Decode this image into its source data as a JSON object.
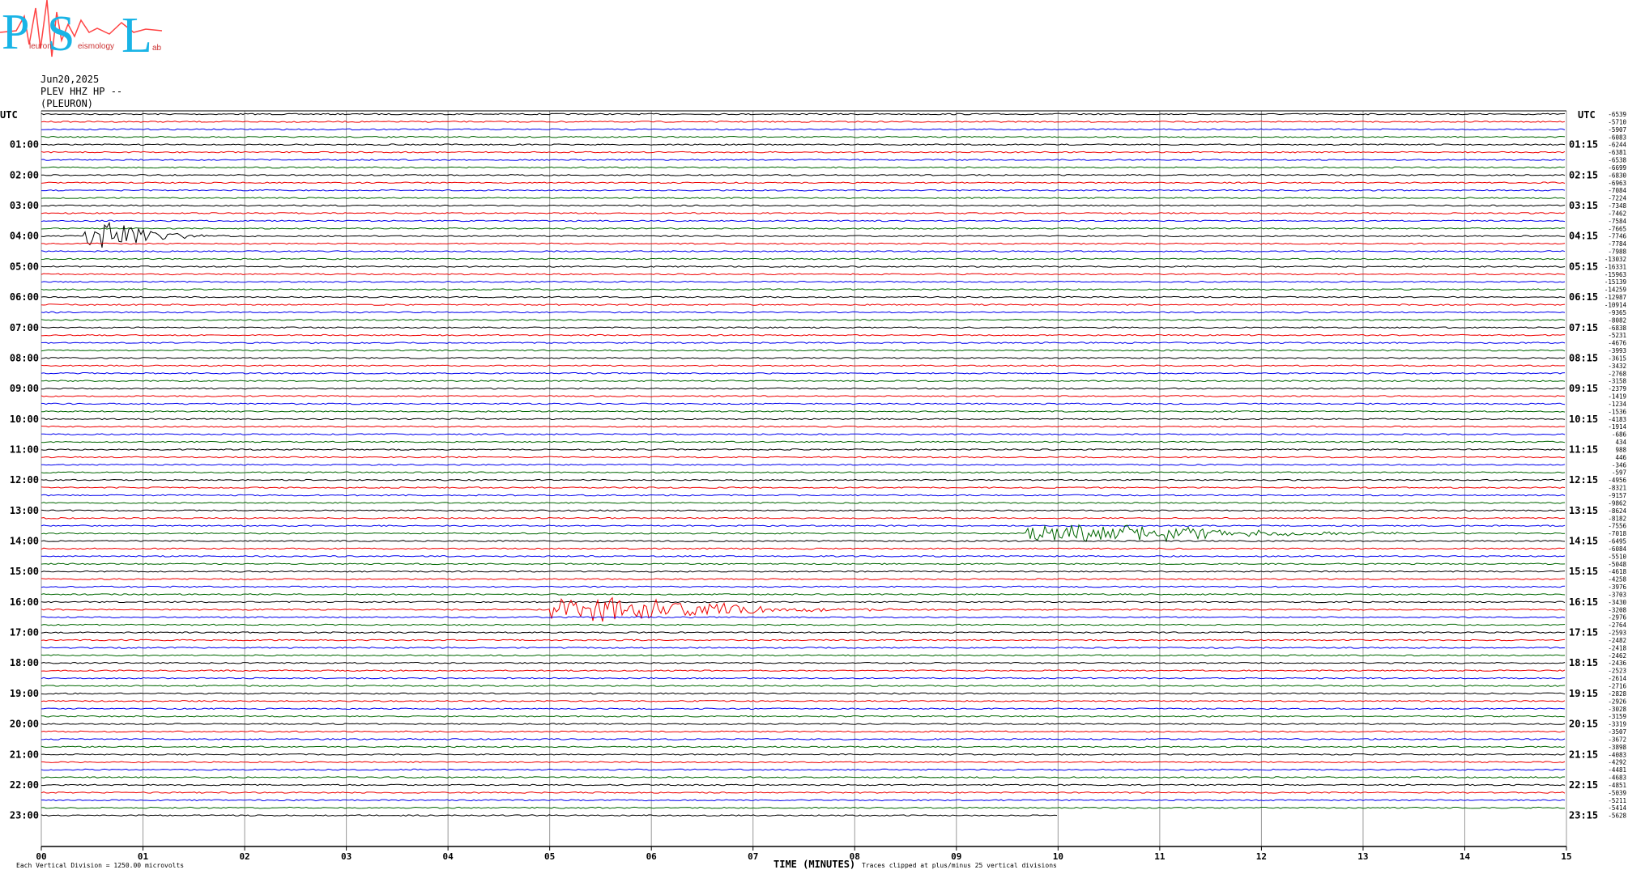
{
  "logo": {
    "initials": [
      "P",
      "S",
      "L"
    ],
    "words": [
      "leuron",
      "eismology",
      "ab"
    ]
  },
  "header": {
    "date": "Jun20,2025",
    "channel": "PLEV HHZ HP --",
    "station": "(PLEURON)"
  },
  "left_axis": {
    "title": "UTC",
    "labels": [
      "01:00",
      "02:00",
      "03:00",
      "04:00",
      "05:00",
      "06:00",
      "07:00",
      "08:00",
      "09:00",
      "10:00",
      "11:00",
      "12:00",
      "13:00",
      "14:00",
      "15:00",
      "16:00",
      "17:00",
      "18:00",
      "19:00",
      "20:00",
      "21:00",
      "22:00",
      "23:00"
    ]
  },
  "right_axis": {
    "title": "UTC",
    "labels": [
      "01:15",
      "02:15",
      "03:15",
      "04:15",
      "05:15",
      "06:15",
      "07:15",
      "08:15",
      "09:15",
      "10:15",
      "11:15",
      "12:15",
      "13:15",
      "14:15",
      "15:15",
      "16:15",
      "17:15",
      "18:15",
      "19:15",
      "20:15",
      "21:15",
      "22:15",
      "23:15"
    ]
  },
  "trace_labels": [
    -6539,
    -5710,
    -5907,
    -6083,
    -6244,
    -6381,
    -6538,
    -6699,
    -6830,
    -6963,
    -7084,
    -7224,
    -7348,
    -7462,
    -7584,
    -7665,
    -7746,
    -7784,
    -7988,
    -13032,
    -16331,
    -15963,
    -15139,
    -14259,
    -12987,
    -10914,
    -9365,
    -8082,
    -6838,
    -5231,
    -4676,
    -3993,
    -3615,
    -3432,
    -2768,
    -3158,
    -2379,
    -1419,
    -1234,
    -1536,
    -4183,
    -1914,
    -686,
    434,
    988,
    446,
    -346,
    -597,
    -4956,
    -8321,
    -9157,
    -9862,
    -8624,
    -8182,
    -7556,
    -7018,
    -6495,
    -6084,
    -5510,
    -5048,
    -4618,
    -4258,
    -3976,
    -3703,
    -3430,
    -3208,
    -2976,
    -2764,
    -2593,
    -2482,
    -2418,
    -2462,
    -2436,
    -2523,
    -2614,
    -2716,
    -2828,
    -2926,
    -3028,
    -3159,
    -3319,
    -3507,
    -3672,
    -3898,
    -4083,
    -4292,
    -4481,
    -4683,
    -4851,
    -5039,
    -5211,
    -5414,
    -5628
  ],
  "x_axis": {
    "ticks": [
      "00",
      "01",
      "02",
      "03",
      "04",
      "05",
      "06",
      "07",
      "08",
      "09",
      "10",
      "11",
      "12",
      "13",
      "14",
      "15"
    ],
    "title": "TIME (MINUTES)"
  },
  "footer": {
    "scale": "Each Vertical Division = 1250.00 microvolts",
    "clip": "Traces clipped at plus/minus 25 vertical divisions"
  }
}
